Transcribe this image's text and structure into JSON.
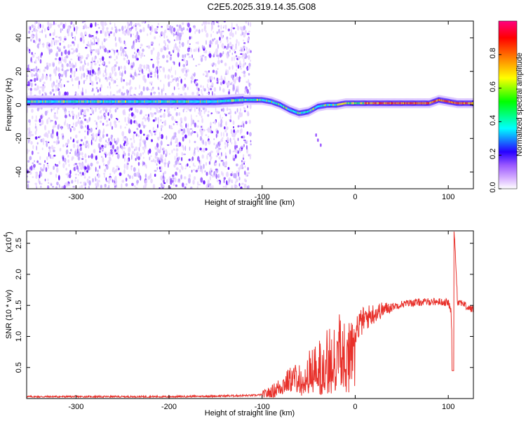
{
  "title": "C2E5.2025.319.14.35.G08",
  "chart_data": [
    {
      "type": "heatmap",
      "xlabel": "Height of straight line (km)",
      "ylabel": "Frequency (Hz)",
      "xlim": [
        -353,
        127
      ],
      "ylim": [
        -50,
        50
      ],
      "xticks": [
        -300,
        -200,
        -100,
        0,
        100
      ],
      "yticks": [
        -40,
        -20,
        0,
        20,
        40
      ],
      "ridge": {
        "x": [
          -353,
          -300,
          -250,
          -200,
          -150,
          -120,
          -100,
          -90,
          -80,
          -70,
          -60,
          -50,
          -40,
          -30,
          -20,
          -10,
          0,
          20,
          40,
          60,
          80,
          90,
          100,
          110,
          127
        ],
        "y": [
          2,
          2,
          2,
          2,
          2,
          3,
          3,
          2,
          0,
          -3,
          -5,
          -4,
          -1,
          0,
          0,
          1,
          1,
          1,
          1,
          1,
          1,
          3,
          2,
          1,
          1
        ]
      },
      "noise_until_x": -120,
      "colorbar": {
        "label": "Normalized spectral amplitude",
        "range": [
          0,
          1
        ],
        "ticks": [
          "0.0",
          "0.2",
          "0.4",
          "0.6",
          "0.8"
        ],
        "colors": [
          "#ffffff",
          "#9b59ff",
          "#2800ff",
          "#00ffff",
          "#00ff00",
          "#ffff00",
          "#ff8000",
          "#ff0000",
          "#ff0080"
        ]
      }
    },
    {
      "type": "line",
      "xlabel": "Height of straight line (km)",
      "ylabel": "SNR (10 * v/v)",
      "y_multiplier_base": "(x10",
      "y_multiplier_exp": "4",
      "y_multiplier_close": ")",
      "xlim": [
        -353,
        127
      ],
      "ylim": [
        0,
        2.7
      ],
      "xticks": [
        -300,
        -200,
        -100,
        0,
        100
      ],
      "yticks": [
        "0.5",
        "1.0",
        "1.5",
        "2.0",
        "2.5"
      ],
      "color": "#e8302a",
      "series": [
        {
          "x": [
            -353,
            -300,
            -250,
            -200,
            -150,
            -110,
            -100,
            -90,
            -80,
            -70,
            -60,
            -50,
            -40,
            -30,
            -20,
            -10,
            0,
            10,
            20,
            30,
            40,
            50,
            60,
            70,
            80,
            90,
            95,
            100,
            103,
            105,
            107,
            110,
            115,
            120,
            127
          ],
          "values": [
            0.03,
            0.03,
            0.03,
            0.03,
            0.04,
            0.05,
            0.06,
            0.1,
            0.2,
            0.3,
            0.35,
            0.45,
            0.6,
            0.75,
            0.85,
            0.95,
            1.12,
            1.28,
            1.37,
            1.43,
            1.48,
            1.52,
            1.54,
            1.55,
            1.56,
            1.56,
            1.55,
            1.55,
            1.4,
            0.45,
            2.55,
            1.55,
            1.55,
            1.47,
            1.43
          ]
        }
      ]
    }
  ]
}
